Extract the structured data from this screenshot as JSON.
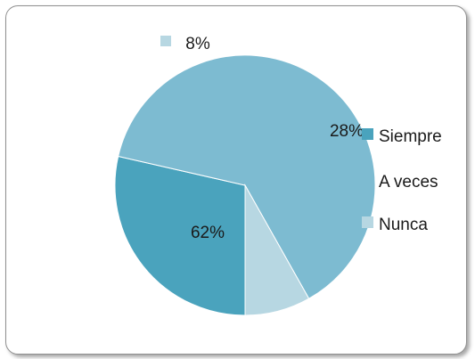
{
  "chart_data": {
    "type": "pie",
    "slices": [
      {
        "label": "Siempre",
        "value": 28,
        "value_label": "28%",
        "color": "#4aa3bd"
      },
      {
        "label": "A veces",
        "value": 62,
        "value_label": "62%",
        "color": "#7dbbd1"
      },
      {
        "label": "Nunca",
        "value": 8,
        "value_label": "8%",
        "color": "#b7d7e2"
      }
    ],
    "legend_position": "right"
  }
}
